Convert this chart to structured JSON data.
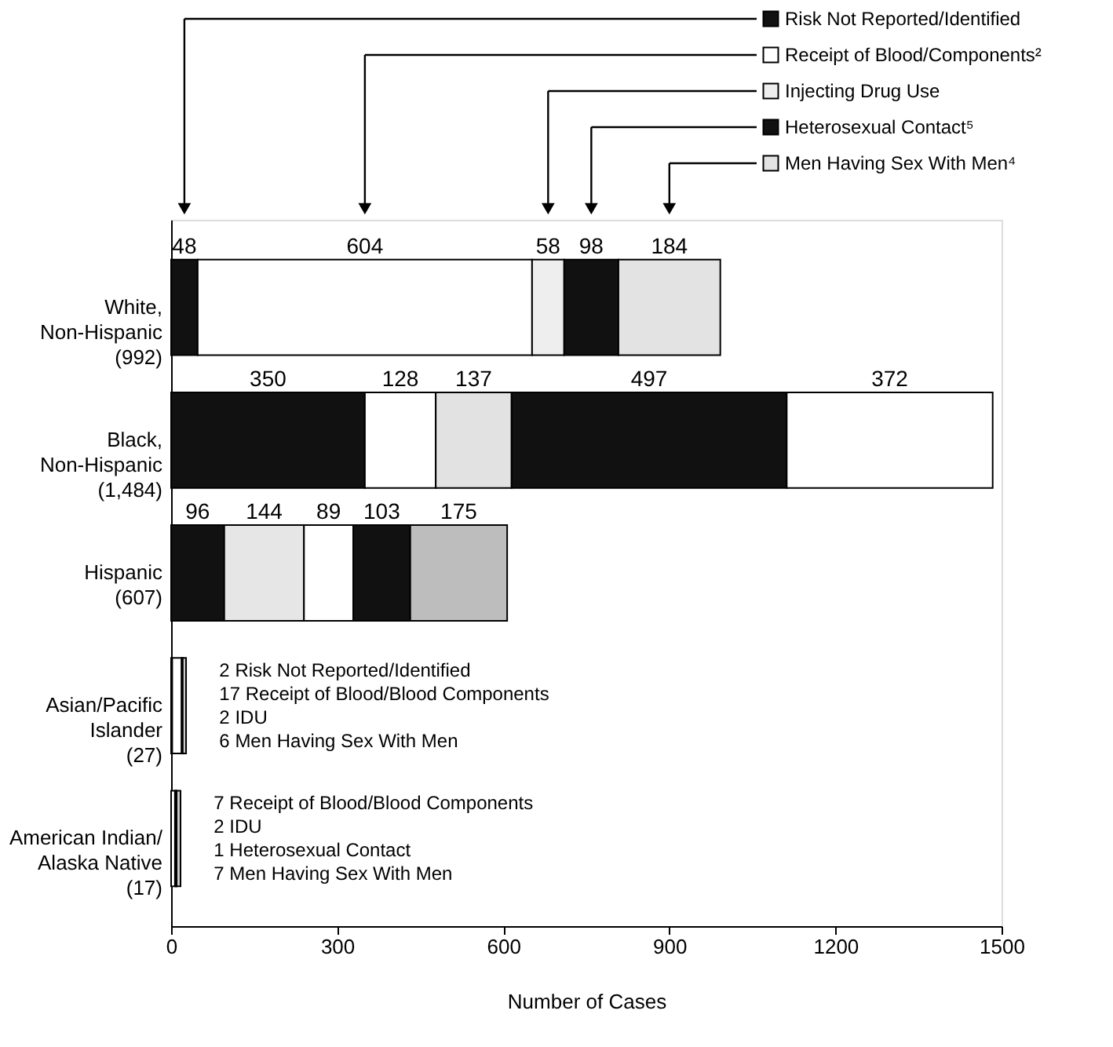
{
  "chart_data": {
    "type": "bar",
    "orientation": "horizontal",
    "stacked": true,
    "xlabel": "Number of Cases",
    "xlim": [
      0,
      1500
    ],
    "xticks": [
      0,
      300,
      600,
      900,
      1200,
      1500
    ],
    "grid": false,
    "legend": "top right",
    "categories": [
      "White,\nNon-Hispanic\n(992)",
      "Black,\nNon-Hispanic\n(1,484)",
      "Hispanic\n(607)",
      "Asian/Pacific\nIslander\n(27)",
      "American Indian/\nAlaska Native\n(17)"
    ],
    "series": [
      {
        "name": "Risk Not Reported/Identified",
        "colors": [
          "#111111",
          "#111111",
          "#111111",
          "#111111",
          "#111111"
        ],
        "values": [
          48,
          350,
          96,
          2,
          null
        ],
        "value_labels": [
          "48",
          "350",
          "96",
          "2   Risk Not Reported/Identified",
          null
        ]
      },
      {
        "name": "Receipt of Blood/Components²",
        "colors": [
          "#ffffff",
          "#ffffff",
          "#e6e6e6",
          "#ffffff",
          "#ffffff"
        ],
        "values": [
          604,
          128,
          144,
          17,
          7
        ],
        "value_labels": [
          "604",
          "128",
          "144",
          "17 Receipt of Blood/Blood Components",
          "7   Receipt of Blood/Blood Components"
        ]
      },
      {
        "name": "Injecting Drug Use",
        "colors": [
          "#eeeeee",
          "#e2e2e2",
          "#ffffff",
          "#dddddd",
          "#dddddd"
        ],
        "values": [
          58,
          137,
          89,
          2,
          2
        ],
        "value_labels": [
          "58",
          "137",
          "89",
          "2   IDU",
          "2   IDU"
        ]
      },
      {
        "name": "Heterosexual Contact⁵",
        "colors": [
          "#111111",
          "#111111",
          "#111111",
          "#111111",
          "#111111"
        ],
        "values": [
          98,
          497,
          103,
          null,
          1
        ],
        "value_labels": [
          "98",
          "497",
          "103",
          null,
          "1   Heterosexual Contact"
        ]
      },
      {
        "name": "Men Having Sex With Men⁴",
        "colors": [
          "#e3e3e3",
          "#ffffff",
          "#bdbdbd",
          "#cccccc",
          "#cccccc"
        ],
        "values": [
          184,
          372,
          175,
          6,
          7
        ],
        "value_labels": [
          "184",
          "372",
          "175",
          "6   Men Having Sex With Men",
          "7   Men Having Sex With Men"
        ]
      }
    ]
  }
}
